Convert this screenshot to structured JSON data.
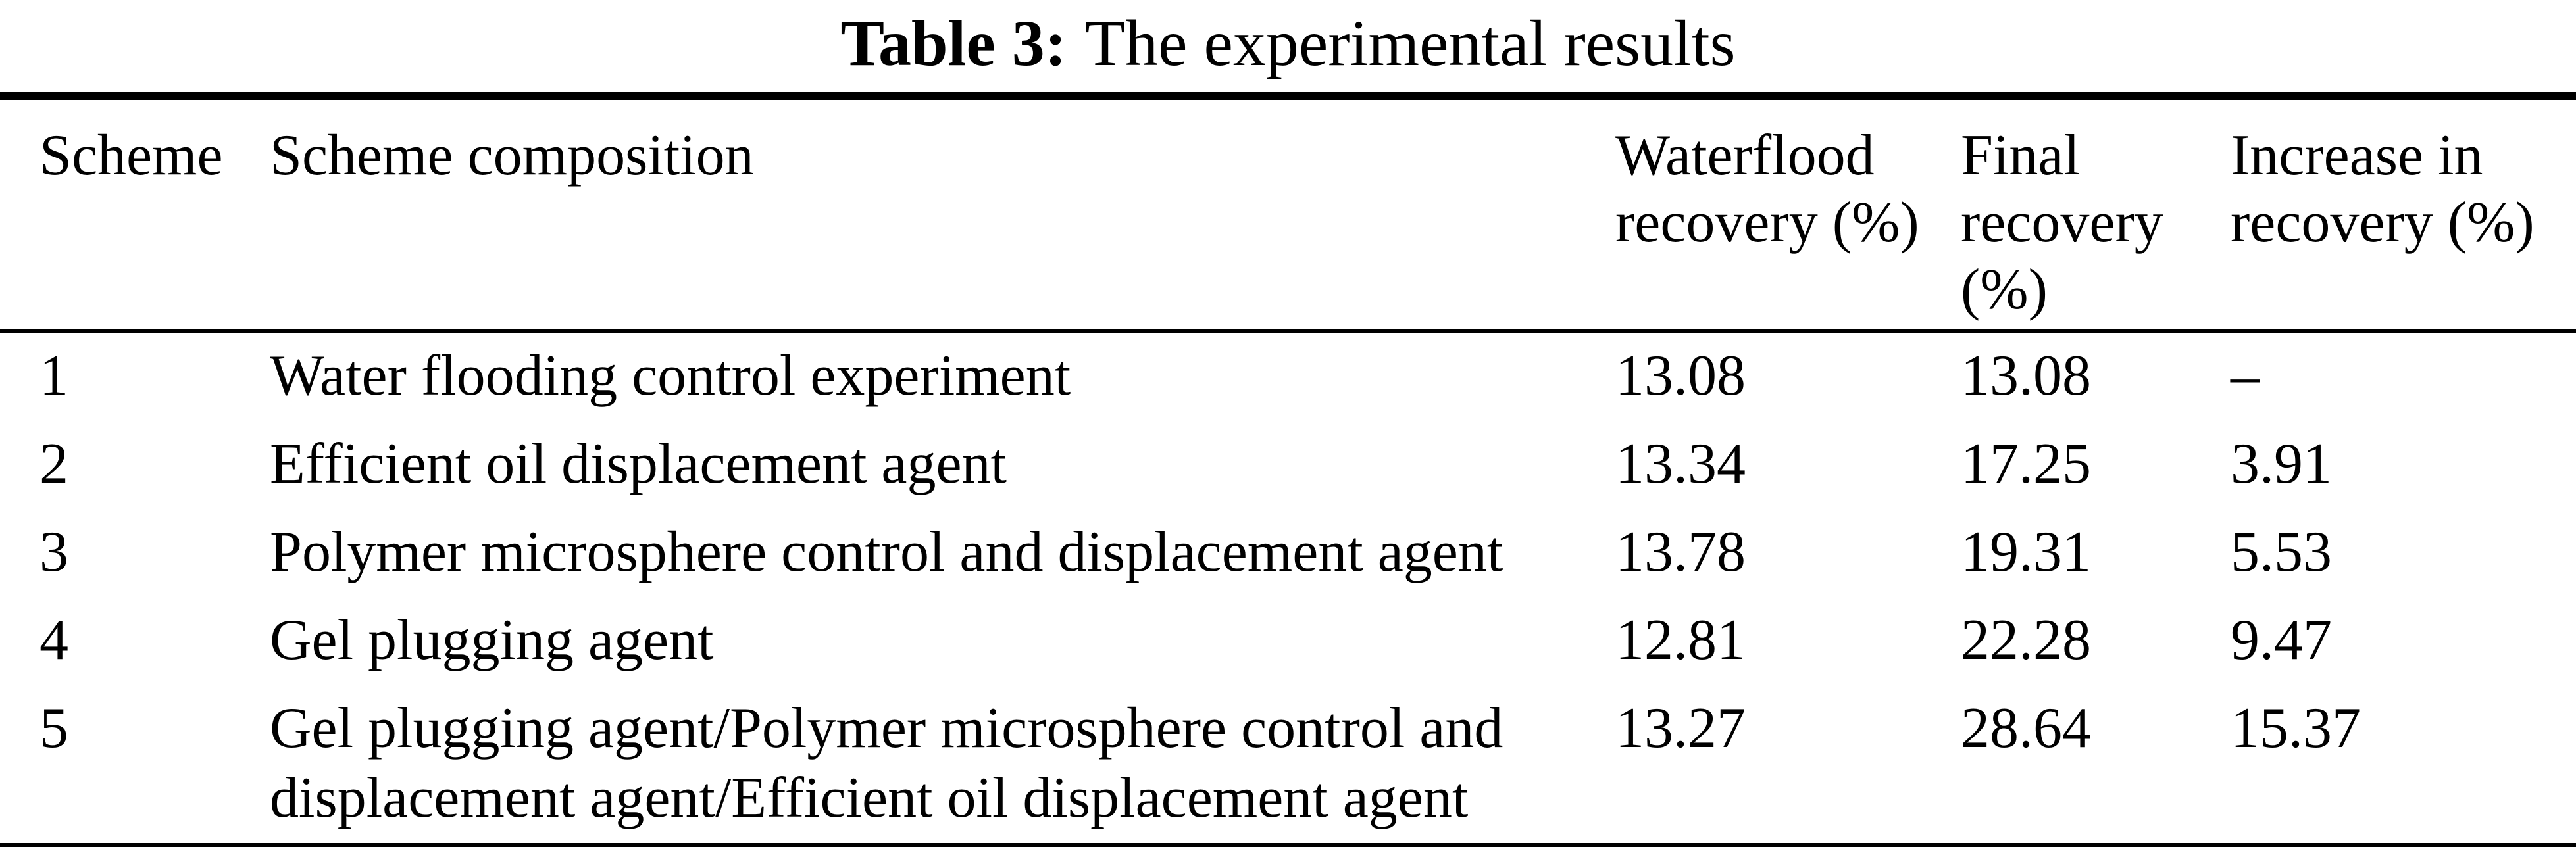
{
  "caption": {
    "label": "Table 3:",
    "text": "The experimental results"
  },
  "table": {
    "columns": [
      {
        "label": "Scheme"
      },
      {
        "label": "Scheme composition"
      },
      {
        "label": "Waterflood recovery (%)"
      },
      {
        "label": "Final recovery (%)"
      },
      {
        "label": "Increase in recovery (%)"
      }
    ],
    "rows": [
      {
        "scheme": "1",
        "composition": "Water flooding control experiment",
        "waterflood": "13.08",
        "final": "13.08",
        "increase": "–"
      },
      {
        "scheme": "2",
        "composition": "Efficient oil displacement agent",
        "waterflood": "13.34",
        "final": "17.25",
        "increase": "3.91"
      },
      {
        "scheme": "3",
        "composition": "Polymer microsphere control and displacement agent",
        "waterflood": "13.78",
        "final": "19.31",
        "increase": "5.53"
      },
      {
        "scheme": "4",
        "composition": "Gel plugging agent",
        "waterflood": "12.81",
        "final": "22.28",
        "increase": "9.47"
      },
      {
        "scheme": "5",
        "composition": "Gel plugging agent/Polymer microsphere control and displacement agent/Efficient oil displacement agent",
        "waterflood": "13.27",
        "final": "28.64",
        "increase": "15.37"
      }
    ]
  }
}
